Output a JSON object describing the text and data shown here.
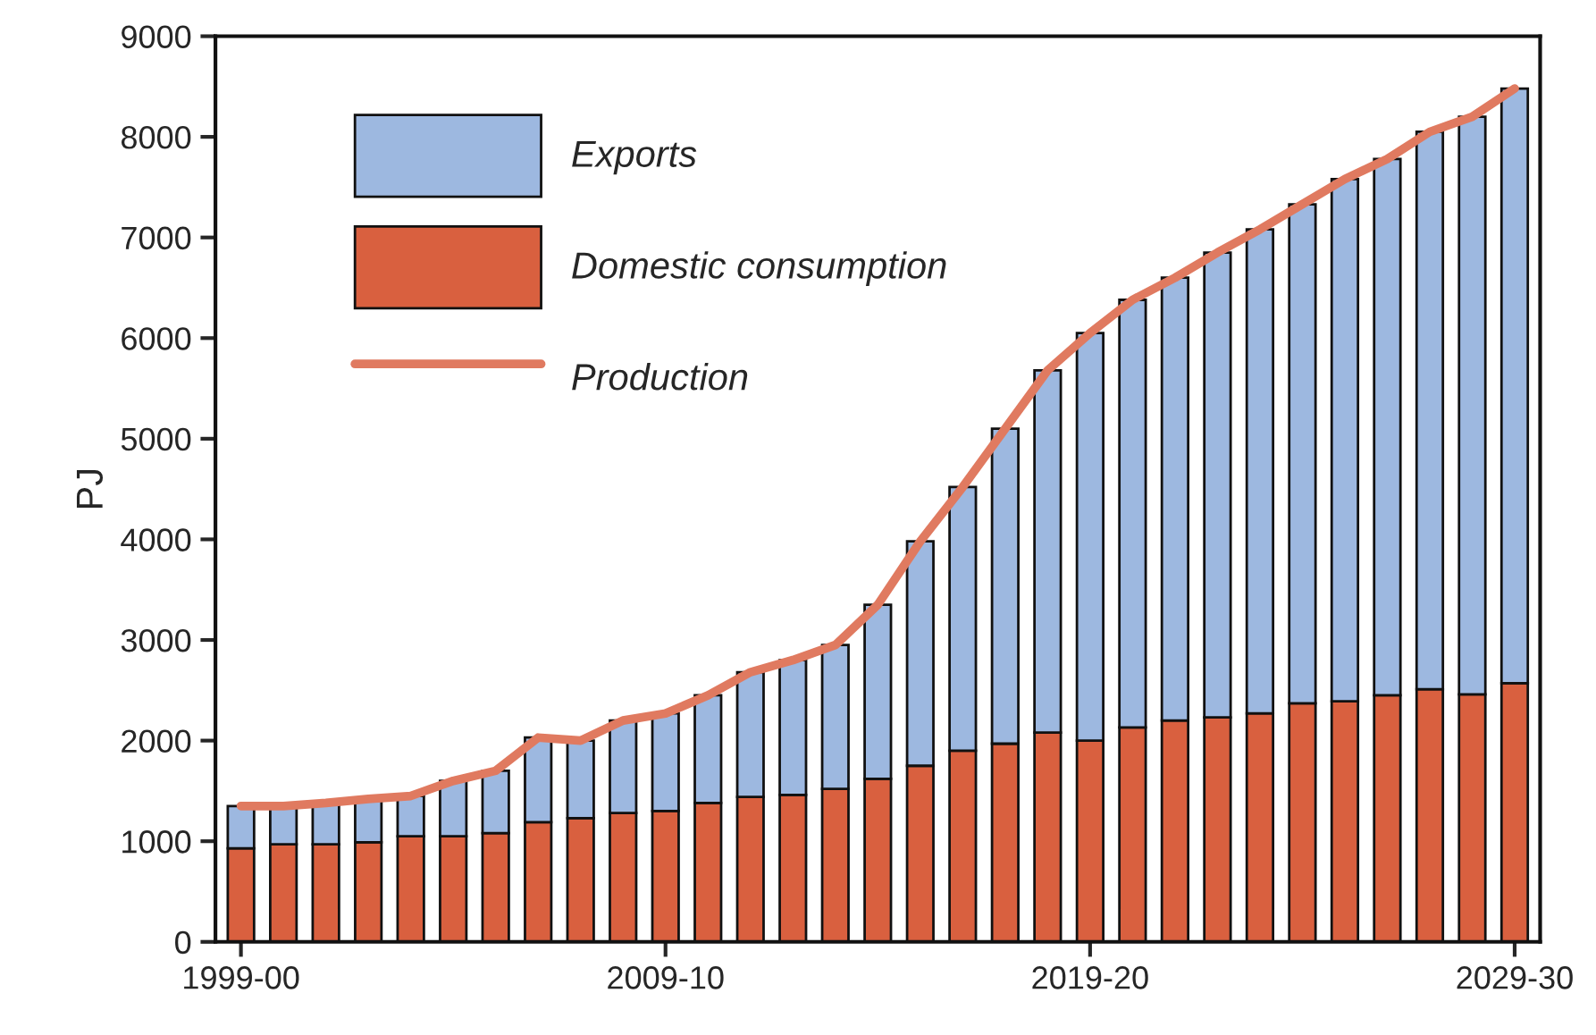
{
  "chart_data": {
    "type": "bar",
    "stacked": true,
    "ylabel": "PJ",
    "categories": [
      "1999-00",
      null,
      null,
      null,
      null,
      null,
      null,
      null,
      null,
      null,
      "2009-10",
      null,
      null,
      null,
      null,
      null,
      null,
      null,
      null,
      null,
      "2019-20",
      null,
      null,
      null,
      null,
      null,
      null,
      null,
      null,
      null,
      "2029-30"
    ],
    "series": [
      {
        "name": "Domestic consumption",
        "color": "#d9603f",
        "values": [
          930,
          970,
          970,
          990,
          1050,
          1050,
          1080,
          1190,
          1230,
          1280,
          1300,
          1380,
          1440,
          1460,
          1520,
          1620,
          1750,
          1900,
          1970,
          2080,
          2000,
          2130,
          2200,
          2230,
          2270,
          2370,
          2390,
          2450,
          2510,
          2460,
          2570
        ]
      },
      {
        "name": "Exports",
        "color": "#9db8e0",
        "values": [
          420,
          380,
          410,
          430,
          400,
          550,
          620,
          840,
          770,
          920,
          970,
          1070,
          1240,
          1340,
          1430,
          1730,
          2230,
          2620,
          3130,
          3600,
          4050,
          4250,
          4400,
          4620,
          4810,
          4960,
          5190,
          5330,
          5540,
          5740,
          5910
        ]
      },
      {
        "name": "Production",
        "type": "line",
        "color": "#e07a60",
        "values": [
          1350,
          1350,
          1380,
          1420,
          1450,
          1600,
          1700,
          2030,
          2000,
          2200,
          2270,
          2450,
          2680,
          2800,
          2950,
          3350,
          3980,
          4520,
          5100,
          5680,
          6050,
          6380,
          6600,
          6850,
          7080,
          7330,
          7580,
          7780,
          8050,
          8200,
          8480
        ]
      }
    ],
    "ylim": [
      0,
      9000
    ],
    "yticks": [
      0,
      1000,
      2000,
      3000,
      4000,
      5000,
      6000,
      7000,
      8000,
      9000
    ],
    "grid": false,
    "legend": "top left"
  }
}
